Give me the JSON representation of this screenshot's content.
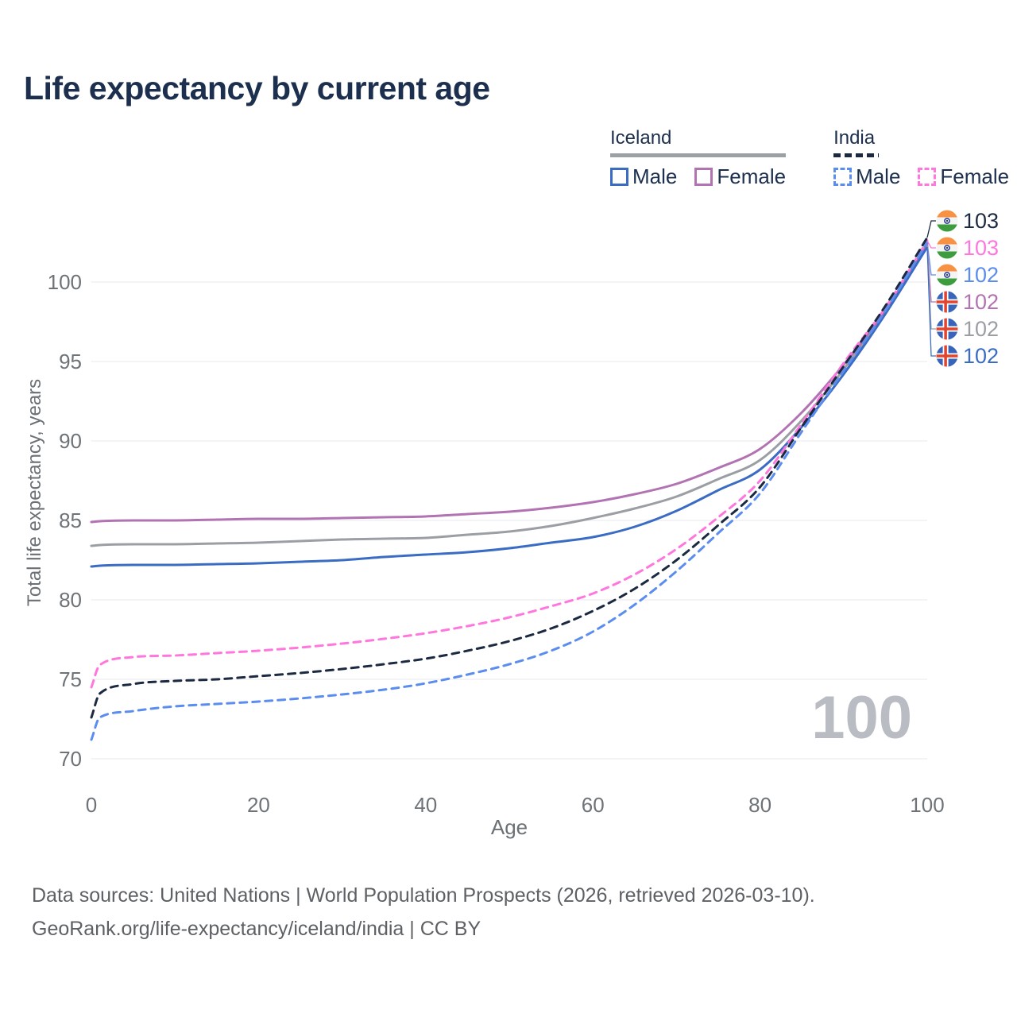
{
  "header": {
    "title": "Life expectancy by current age"
  },
  "legend": {
    "groups": [
      {
        "country": "Iceland",
        "line_style": "solid",
        "underline_color": "#9ba0a5",
        "items": [
          {
            "label": "Male",
            "color": "#3a6cc4"
          },
          {
            "label": "Female",
            "color": "#b273b2"
          }
        ]
      },
      {
        "country": "India",
        "line_style": "dashed",
        "underline_color": "#1b2a41",
        "items": [
          {
            "label": "Male",
            "color": "#5b8def"
          },
          {
            "label": "Female",
            "color": "#ff77dd"
          }
        ]
      }
    ]
  },
  "chart_data": {
    "type": "line",
    "title": "Life expectancy by current age",
    "xlabel": "Age",
    "ylabel": "Total life expectancy, years",
    "x_ticks": [
      0,
      20,
      40,
      60,
      80,
      100
    ],
    "y_ticks": [
      70,
      75,
      80,
      85,
      90,
      95,
      100
    ],
    "xlim": [
      0,
      100
    ],
    "ylim": [
      69.5,
      104
    ],
    "grid": "horizontal",
    "legend_position": "top-right",
    "watermark_age_counter": "100",
    "ages": [
      0,
      1,
      5,
      10,
      15,
      20,
      25,
      30,
      35,
      40,
      45,
      50,
      55,
      60,
      65,
      70,
      75,
      80,
      85,
      90,
      95,
      100
    ],
    "series": [
      {
        "key": "iceland_all",
        "name": "Iceland Both sexes",
        "country": "Iceland",
        "sex": "Both",
        "style": "solid",
        "color": "#9b9fa4",
        "values": [
          83.4,
          83.45,
          83.5,
          83.5,
          83.55,
          83.6,
          83.7,
          83.8,
          83.85,
          83.9,
          84.1,
          84.3,
          84.65,
          85.15,
          85.75,
          86.5,
          87.6,
          88.8,
          91.3,
          94.5,
          98.1,
          102.3
        ]
      },
      {
        "key": "iceland_female",
        "name": "Iceland Female",
        "country": "Iceland",
        "sex": "Female",
        "style": "solid",
        "color": "#b273b2",
        "values": [
          84.9,
          84.95,
          85.0,
          85.0,
          85.05,
          85.1,
          85.1,
          85.15,
          85.2,
          85.25,
          85.4,
          85.55,
          85.8,
          86.15,
          86.65,
          87.3,
          88.3,
          89.5,
          91.8,
          94.8,
          98.2,
          102.4
        ]
      },
      {
        "key": "iceland_male",
        "name": "Iceland Male",
        "country": "Iceland",
        "sex": "Male",
        "style": "solid",
        "color": "#3a6cc4",
        "values": [
          82.1,
          82.15,
          82.2,
          82.2,
          82.25,
          82.3,
          82.4,
          82.5,
          82.7,
          82.85,
          83.0,
          83.25,
          83.6,
          83.95,
          84.6,
          85.6,
          86.9,
          88.2,
          90.9,
          94.2,
          98.0,
          102.2
        ]
      },
      {
        "key": "india_female",
        "name": "India Female",
        "country": "India",
        "sex": "Female",
        "style": "dashed",
        "color": "#ff77dd",
        "values": [
          74.5,
          75.9,
          76.4,
          76.5,
          76.65,
          76.8,
          77.0,
          77.25,
          77.55,
          77.9,
          78.35,
          78.9,
          79.6,
          80.4,
          81.6,
          83.2,
          85.2,
          87.5,
          91.1,
          94.9,
          98.4,
          102.6
        ]
      },
      {
        "key": "india_all",
        "name": "India Both sexes",
        "country": "India",
        "sex": "Both",
        "style": "dashed",
        "color": "#1b2a41",
        "values": [
          72.6,
          74.1,
          74.7,
          74.9,
          75.0,
          75.2,
          75.4,
          75.65,
          75.95,
          76.3,
          76.8,
          77.4,
          78.2,
          79.3,
          80.7,
          82.5,
          84.7,
          87.1,
          90.9,
          94.7,
          98.5,
          102.8
        ]
      },
      {
        "key": "india_male",
        "name": "India Male",
        "country": "India",
        "sex": "Male",
        "style": "dashed",
        "color": "#5b8def",
        "values": [
          71.2,
          72.6,
          73.0,
          73.3,
          73.45,
          73.6,
          73.8,
          74.05,
          74.35,
          74.75,
          75.3,
          75.95,
          76.8,
          78.0,
          79.7,
          81.8,
          84.2,
          86.7,
          90.6,
          94.4,
          98.2,
          102.5
        ]
      }
    ],
    "end_labels": [
      {
        "series": "india_all",
        "flag": "india",
        "value": "103"
      },
      {
        "series": "india_female",
        "flag": "india",
        "value": "103"
      },
      {
        "series": "india_male",
        "flag": "india",
        "value": "102"
      },
      {
        "series": "iceland_female",
        "flag": "iceland",
        "value": "102"
      },
      {
        "series": "iceland_all",
        "flag": "iceland",
        "value": "102"
      },
      {
        "series": "iceland_male",
        "flag": "iceland",
        "value": "102"
      }
    ]
  },
  "footer": {
    "line1": "Data sources: United Nations | World Population Prospects (2026, retrieved 2026-03-10).",
    "line2": "GeoRank.org/life-expectancy/iceland/india | CC BY"
  }
}
